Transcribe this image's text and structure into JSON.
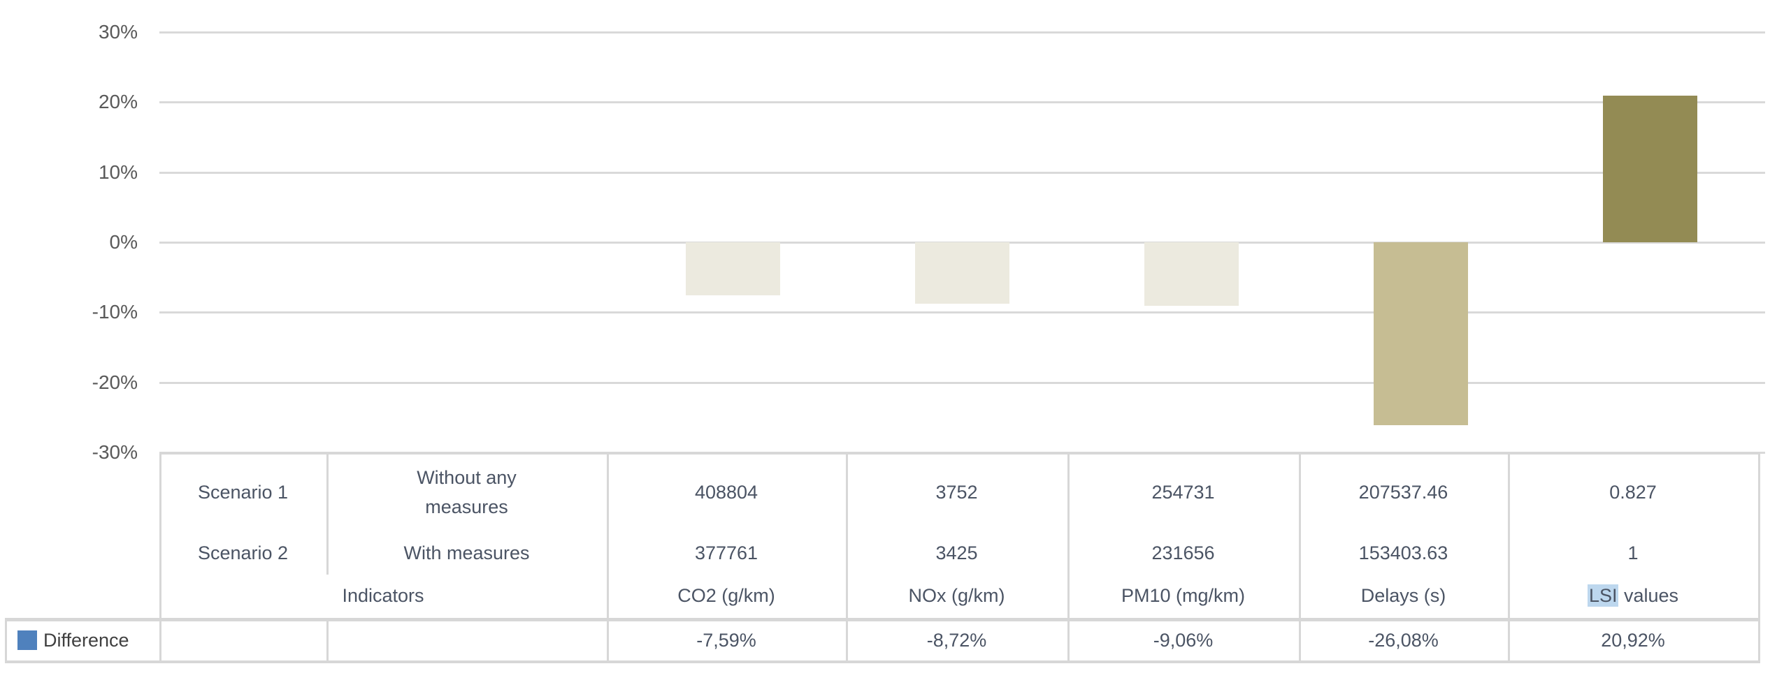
{
  "chart_data": {
    "type": "bar",
    "title": "",
    "xlabel": "",
    "ylabel": "",
    "categories": [
      "",
      "",
      "CO2 (g/km)",
      "NOx (g/km)",
      "PM10 (mg/km)",
      "Delays (s)",
      "LSI values"
    ],
    "series": [
      {
        "name": "Difference",
        "values": [
          null,
          null,
          -7.59,
          -8.72,
          -9.06,
          -26.08,
          20.92
        ]
      }
    ],
    "point_colors": [
      null,
      null,
      "#eceadf",
      "#eceadf",
      "#eceadf",
      "#c6bd93",
      "#938b54"
    ],
    "ylim": [
      -30,
      30
    ],
    "yticks": [
      {
        "label": "30%",
        "value": 30
      },
      {
        "label": "20%",
        "value": 20
      },
      {
        "label": "10%",
        "value": 10
      },
      {
        "label": "0%",
        "value": 0
      },
      {
        "label": "-10%",
        "value": -10
      },
      {
        "label": "-20%",
        "value": -20
      },
      {
        "label": "-30%",
        "value": -30
      }
    ],
    "grid": true,
    "gridline_color": "#d9d9d9",
    "axis_label_color": "#595959",
    "legend_position": "bottom-left"
  },
  "legend": {
    "label": "Difference",
    "swatch_color": "#4f81bd"
  },
  "table": {
    "rows": [
      {
        "scenario": "Scenario 1",
        "measures": "Without any measures",
        "measures_lines": [
          "Without any",
          "measures"
        ],
        "values": [
          "408804",
          "3752",
          "254731",
          "207537.46",
          "0.827"
        ]
      },
      {
        "scenario": "Scenario 2",
        "measures": "With measures",
        "measures_lines": [
          "With measures"
        ],
        "values": [
          "377761",
          "3425",
          "231656",
          "153403.63",
          "1"
        ]
      }
    ],
    "indicators_label": "Indicators",
    "column_headers": [
      {
        "text": "CO2 (g/km)"
      },
      {
        "text": "NOx (g/km)"
      },
      {
        "text": "PM10 (mg/km)"
      },
      {
        "text": "Delays (s)"
      },
      {
        "text": "LSI values",
        "highlighted_part": "LSI",
        "rest_part": " values",
        "highlight_color": "#bdd7ee"
      }
    ],
    "difference_row": {
      "values": [
        "-7,59%",
        "-8,72%",
        "-9,06%",
        "-26,08%",
        "20,92%"
      ]
    }
  }
}
